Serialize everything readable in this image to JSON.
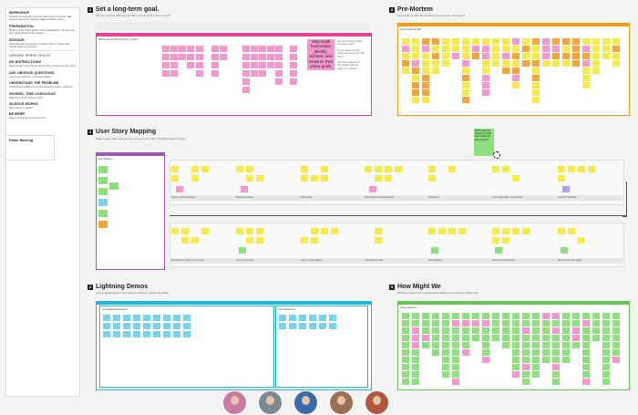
{
  "left_panel": {
    "sections": [
      {
        "title": "WORKSHOP",
        "text": "Manage an agenda / keep the discussion focused. Take notes in the room. Capture ideas on sticky notes."
      },
      {
        "title": "PREPARATION",
        "text": "Make a copy of this board. Invite participants. Set the long-term goal ahead of the session."
      },
      {
        "title": "SESSION",
        "text": "Work through the sections in order. Vote on ideas and decide what to prototype."
      }
    ],
    "rules_title": "GROUND SPRINT RULES",
    "rules": [
      {
        "title": "NO DISTRACTIONS",
        "text": "Keep laptops and phones away. Stay focused on the sprint."
      },
      {
        "title": "ASK OBVIOUS QUESTIONS",
        "text": "Use 'How might we' to capture ideas."
      },
      {
        "title": "UNDERSTAND THE PROBLEM",
        "text": "Think about problems and opportunities before solutions."
      },
      {
        "title": "SHARED, TIME CONSCIOUS",
        "text": "Watch the clock. Keep it short."
      },
      {
        "title": "SILENCE WORKS",
        "text": "Work alone, together."
      },
      {
        "title": "BE BRIEF",
        "text": "Keep comments and notes short."
      }
    ],
    "note_label": "Home Backlog"
  },
  "sections": {
    "goal": {
      "num": "1",
      "title": "Set a long-term goal.",
      "subtitle": "Why are we doing this project? Where do we want to be in 1 year?",
      "frame_label": "Where do we want to be in 1 year?",
      "callout": "Help small businesses identify, achieve, and measure their online goals.",
      "side_notes": [
        "Are we creating small business tools?",
        "Do we keep enough customers that are if the time?",
        "Are there aspects of this project that we might go it alone?"
      ]
    },
    "premortem": {
      "num": "2",
      "title": "Pre-Mortem",
      "subtitle": "How could we fail? What would prevent us from reaching it?",
      "frame_label": "How could we fail?"
    },
    "story": {
      "num": "3",
      "title": "User Story Mapping",
      "subtitle": "Make a map of the customer journey from left to right. List all the steps involved.",
      "lane_label": "Key Players",
      "row1_labels": [
        "Step 1: pick a business",
        "Build a business",
        "Set up site",
        "Personalize online presence",
        "Research",
        "Good marketers + promoters",
        "Look for feedback"
      ],
      "row2_labels": [
        "Products & services to promote",
        "Get into account",
        "Learn things happen",
        "Automate & track",
        "Find insights",
        "Add a personal touch",
        "Reach loyal new goals"
      ],
      "callout": "Which features should we build first? What will they expect?"
    },
    "demos": {
      "num": "4",
      "title": "Lightning Demos",
      "subtitle": "Look at great solutions from other companies. Capture big ideas.",
      "frame1_label": "Competitive Research",
      "frame2_label": "User Research"
    },
    "hmw": {
      "num": "5",
      "title": "How Might We",
      "subtitle": "Reframe problems into opportunities. Write one question per sticky note.",
      "frame_label": "How might we..."
    }
  },
  "collaborators": [
    {
      "name": "avatar-1",
      "bg": "#c87aa0"
    },
    {
      "name": "avatar-2",
      "bg": "#7b8a92"
    },
    {
      "name": "avatar-3",
      "bg": "#3b6aa8"
    },
    {
      "name": "avatar-4",
      "bg": "#9a6f52"
    },
    {
      "name": "avatar-5",
      "bg": "#b0573f"
    }
  ],
  "colors": {
    "goal": "#e84393",
    "premortem": "#f39c12",
    "story": "#9b59b6",
    "demos": "#27b5d6",
    "hmw": "#6ac259",
    "dark": "#222222"
  }
}
